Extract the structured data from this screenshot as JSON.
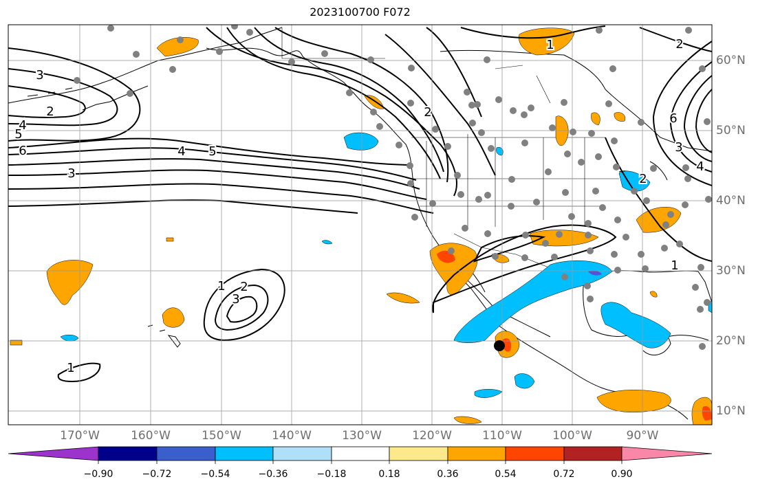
{
  "title": "2023100700 F072",
  "lon_ticks": [
    "170°W",
    "160°W",
    "150°W",
    "140°W",
    "130°W",
    "120°W",
    "110°W",
    "100°W",
    "90°W"
  ],
  "lat_ticks": [
    "60°N",
    "50°N",
    "40°N",
    "30°N",
    "20°N",
    "10°N"
  ],
  "contour_labels": [
    "1",
    "2",
    "3",
    "4",
    "5",
    "6",
    "2",
    "3",
    "4",
    "5",
    "2",
    "1",
    "2",
    "3",
    "1",
    "1",
    "2",
    "6",
    "4",
    "3"
  ],
  "colorbar": {
    "labels": [
      "−0.90",
      "−0.72",
      "−0.54",
      "−0.36",
      "−0.18",
      "0.18",
      "0.36",
      "0.54",
      "0.72",
      "0.90"
    ],
    "colors": [
      "#9b33cc",
      "#00008b",
      "#3a5fcd",
      "#00bfff",
      "#b0e0f8",
      "#ffffff",
      "#fbe98c",
      "#ffa500",
      "#ff4500",
      "#b22222",
      "#f987a8"
    ]
  },
  "colors": {
    "positive_shade": "#ffa500",
    "strong_positive_shade": "#ff4500",
    "negative_shade": "#00bfff",
    "station_dot": "#808080",
    "storm_marker": "#000000",
    "contour": "#000000",
    "grid": "#9a9a9a"
  }
}
